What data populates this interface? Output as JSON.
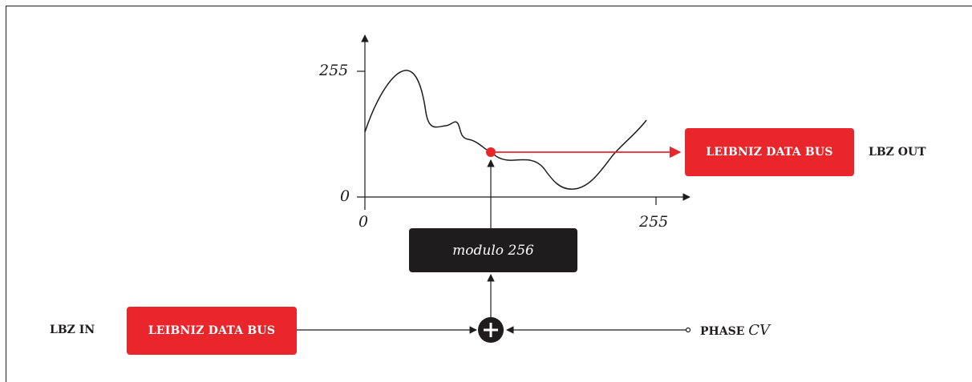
{
  "diagram": {
    "modulo_label": "modulo 256",
    "bus_in_label": "LEIBNIZ DATA BUS",
    "bus_out_label": "LEIBNIZ DATA BUS",
    "lbz_in_label": "LBZ IN",
    "lbz_out_label": "LBZ OUT",
    "phase_label": "PHASE",
    "cv_label": "CV",
    "sum_symbol": "+",
    "axis": {
      "y_max_label": "255",
      "y_min_label": "0",
      "x_min_label": "0",
      "x_max_label": "255"
    },
    "colors": {
      "accent_red": "#e8262b",
      "dark": "#1e1c1d"
    }
  }
}
